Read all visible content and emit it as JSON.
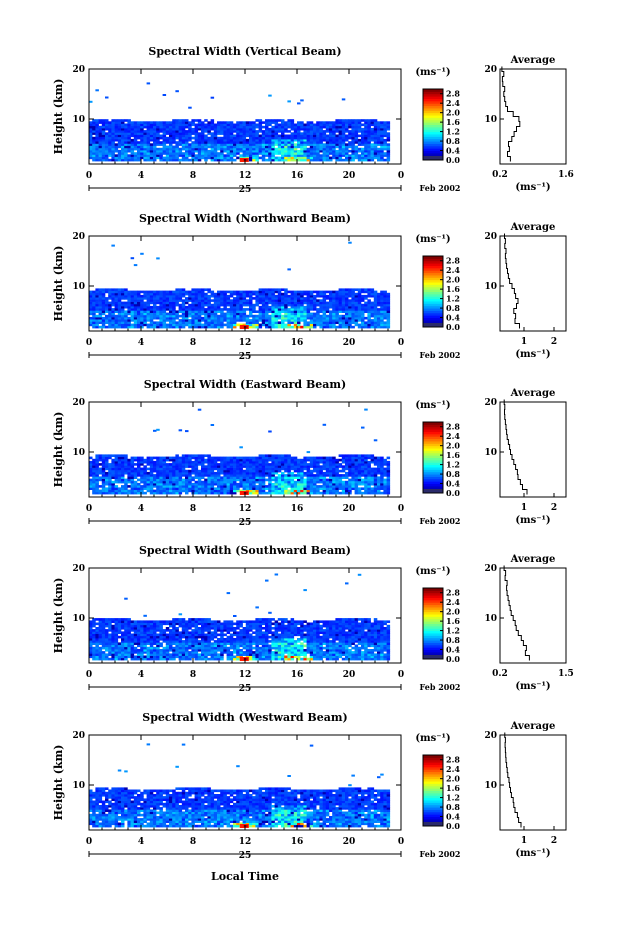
{
  "figure": {
    "xlabel_bottom": "Local Time",
    "date_label": "Feb 2002",
    "day_label": "25",
    "colorbar_unit": "(ms⁻¹)",
    "avg_title": "Average",
    "avg_unit": "(ms⁻¹)",
    "ylabel": "Height (km)"
  },
  "chart_data": [
    {
      "type": "heatmap",
      "title": "Spectral Width (Vertical Beam)",
      "ylabel": "Height (km)",
      "x_ticks": [
        "0",
        "4",
        "8",
        "12",
        "16",
        "20",
        "0"
      ],
      "y_ticks": [
        "10",
        "20"
      ],
      "xlim": [
        0,
        24
      ],
      "ylim": [
        1,
        20
      ],
      "colorbar": {
        "ticks": [
          "0.0",
          "0.4",
          "0.8",
          "1.2",
          "1.6",
          "2.0",
          "2.4",
          "2.8"
        ],
        "range": [
          0,
          3.0
        ]
      },
      "clutter_top_km": 9.5,
      "average_profile": {
        "title": "Average",
        "x_ticks": [
          "0.2",
          "1.6"
        ],
        "xlim": [
          0.2,
          1.6
        ],
        "y_ticks": [
          "10",
          "20"
        ],
        "heights": [
          2,
          3,
          4,
          5,
          6,
          7,
          8,
          9,
          10,
          11,
          12,
          13,
          14,
          15,
          16,
          17,
          18,
          19,
          20
        ],
        "values": [
          0.42,
          0.36,
          0.4,
          0.38,
          0.45,
          0.5,
          0.55,
          0.62,
          0.6,
          0.48,
          0.36,
          0.32,
          0.3,
          0.28,
          0.3,
          0.26,
          0.25,
          0.28,
          0.24
        ]
      }
    },
    {
      "type": "heatmap",
      "title": "Spectral Width (Northward Beam)",
      "ylabel": "Height (km)",
      "x_ticks": [
        "0",
        "4",
        "8",
        "12",
        "16",
        "20",
        "0"
      ],
      "y_ticks": [
        "10",
        "20"
      ],
      "xlim": [
        0,
        24
      ],
      "ylim": [
        1,
        20
      ],
      "colorbar": {
        "ticks": [
          "0.0",
          "0.4",
          "0.8",
          "1.2",
          "1.6",
          "2.0",
          "2.4",
          "2.8"
        ],
        "range": [
          0,
          3.0
        ]
      },
      "clutter_top_km": 9.0,
      "average_profile": {
        "title": "Average",
        "x_ticks": [
          "1",
          "2"
        ],
        "xlim": [
          0.2,
          2.4
        ],
        "y_ticks": [
          "10",
          "20"
        ],
        "heights": [
          2,
          3,
          4,
          5,
          6,
          7,
          8,
          9,
          10,
          11,
          12,
          13,
          14,
          15,
          16,
          17,
          18,
          19,
          20
        ],
        "values": [
          0.85,
          0.7,
          0.72,
          0.66,
          0.75,
          0.8,
          0.72,
          0.68,
          0.6,
          0.52,
          0.48,
          0.45,
          0.42,
          0.4,
          0.38,
          0.4,
          0.36,
          0.38,
          0.35
        ]
      }
    },
    {
      "type": "heatmap",
      "title": "Spectral Width (Eastward Beam)",
      "ylabel": "Height (km)",
      "x_ticks": [
        "0",
        "4",
        "8",
        "12",
        "16",
        "20",
        "0"
      ],
      "y_ticks": [
        "10",
        "20"
      ],
      "xlim": [
        0,
        24
      ],
      "ylim": [
        1,
        20
      ],
      "colorbar": {
        "ticks": [
          "0.0",
          "0.4",
          "0.8",
          "1.2",
          "1.6",
          "2.0",
          "2.4",
          "2.8"
        ],
        "range": [
          0,
          3.0
        ]
      },
      "clutter_top_km": 9.0,
      "average_profile": {
        "title": "Average",
        "x_ticks": [
          "1",
          "2"
        ],
        "xlim": [
          0.2,
          2.4
        ],
        "y_ticks": [
          "10",
          "20"
        ],
        "heights": [
          2,
          3,
          4,
          5,
          6,
          7,
          8,
          9,
          10,
          11,
          12,
          13,
          14,
          15,
          16,
          17,
          18,
          19,
          20
        ],
        "values": [
          1.1,
          0.95,
          0.88,
          0.8,
          0.78,
          0.72,
          0.66,
          0.6,
          0.55,
          0.52,
          0.48,
          0.44,
          0.42,
          0.4,
          0.38,
          0.36,
          0.35,
          0.36,
          0.34
        ]
      }
    },
    {
      "type": "heatmap",
      "title": "Spectral Width (Southward Beam)",
      "ylabel": "Height (km)",
      "x_ticks": [
        "0",
        "4",
        "8",
        "12",
        "16",
        "20",
        "0"
      ],
      "y_ticks": [
        "10",
        "20"
      ],
      "xlim": [
        0,
        24
      ],
      "ylim": [
        1,
        20
      ],
      "colorbar": {
        "ticks": [
          "0.0",
          "0.4",
          "0.8",
          "1.2",
          "1.6",
          "2.0",
          "2.4",
          "2.8"
        ],
        "range": [
          0,
          3.0
        ]
      },
      "clutter_top_km": 9.5,
      "average_profile": {
        "title": "Average",
        "x_ticks": [
          "0.2",
          "1.5"
        ],
        "xlim": [
          0.2,
          1.5
        ],
        "y_ticks": [
          "10",
          "20"
        ],
        "heights": [
          2,
          3,
          4,
          5,
          6,
          7,
          8,
          9,
          10,
          11,
          12,
          13,
          14,
          15,
          16,
          17,
          18,
          19,
          20
        ],
        "values": [
          0.78,
          0.7,
          0.72,
          0.66,
          0.62,
          0.56,
          0.52,
          0.5,
          0.46,
          0.42,
          0.4,
          0.38,
          0.36,
          0.34,
          0.33,
          0.34,
          0.3,
          0.31,
          0.28
        ]
      }
    },
    {
      "type": "heatmap",
      "title": "Spectral Width (Westward Beam)",
      "ylabel": "Height (km)",
      "x_ticks": [
        "0",
        "4",
        "8",
        "12",
        "16",
        "20",
        "0"
      ],
      "y_ticks": [
        "10",
        "20"
      ],
      "xlim": [
        0,
        24
      ],
      "ylim": [
        1,
        20
      ],
      "colorbar": {
        "ticks": [
          "0.0",
          "0.4",
          "0.8",
          "1.2",
          "1.6",
          "2.0",
          "2.4",
          "2.8"
        ],
        "range": [
          0,
          3.0
        ]
      },
      "clutter_top_km": 9.0,
      "average_profile": {
        "title": "Average",
        "x_ticks": [
          "1",
          "2"
        ],
        "xlim": [
          0.2,
          2.4
        ],
        "y_ticks": [
          "10",
          "20"
        ],
        "heights": [
          2,
          3,
          4,
          5,
          6,
          7,
          8,
          9,
          10,
          11,
          12,
          13,
          14,
          15,
          16,
          17,
          18,
          19,
          20
        ],
        "values": [
          0.9,
          0.82,
          0.78,
          0.7,
          0.66,
          0.64,
          0.58,
          0.55,
          0.52,
          0.5,
          0.46,
          0.44,
          0.42,
          0.4,
          0.39,
          0.38,
          0.37,
          0.38,
          0.36
        ]
      }
    }
  ]
}
